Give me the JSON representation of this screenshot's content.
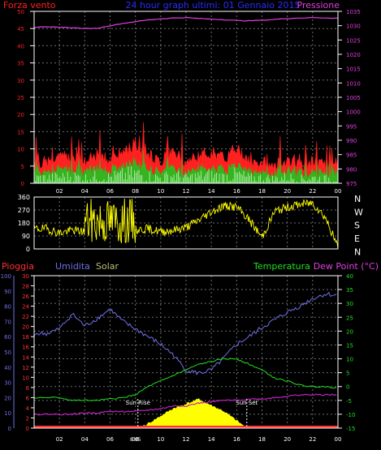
{
  "colors": {
    "background": "#000000",
    "frame": "#ffffff",
    "grid": "#6e6e6e",
    "wind": "#ff2020",
    "gust": "#1fc41f",
    "gust_light": "#d8ffd8",
    "pressure": "#e040e0",
    "direction": "#ffff00",
    "rain": "#ff3030",
    "humidity": "#6f6fe8",
    "solar": "#ffff00",
    "solar_text": "#bfbf7a",
    "temperature": "#20e020",
    "dewpoint": "#c020c0",
    "title": "#2a2aff",
    "sun_marker": "#ffffff"
  },
  "chart_data": [
    {
      "type": "line",
      "panel": "wind-pressure",
      "title": "24 hour graph ultimi: 01 Gennaio 2015",
      "left_label": "Forza vento",
      "right_label": "Pressione",
      "x_ticks": [
        "02",
        "04",
        "06",
        "08",
        "10",
        "12",
        "14",
        "16",
        "18",
        "20",
        "22",
        "00"
      ],
      "ylim_left": [
        0,
        50
      ],
      "y_ticks_left": [
        "0",
        "5",
        "10",
        "15",
        "20",
        "25",
        "30",
        "35",
        "40",
        "45",
        "50"
      ],
      "ylim_right": [
        975,
        1035
      ],
      "y_ticks_right": [
        "975",
        "980",
        "985",
        "990",
        "995",
        "1000",
        "1005",
        "1010",
        "1015",
        "1020",
        "1025",
        "1030",
        "1035"
      ],
      "series": [
        {
          "name": "Forza vento",
          "x": [
            1,
            2,
            3,
            4,
            5,
            6,
            7,
            8,
            9,
            10,
            11,
            12,
            13,
            14,
            15,
            16,
            17,
            18,
            19,
            20,
            21,
            22,
            23,
            24
          ],
          "values": [
            6,
            7,
            8,
            6,
            8,
            7,
            9,
            11,
            8,
            6,
            9,
            6,
            8,
            9,
            7,
            10,
            6,
            6,
            5,
            7,
            5,
            6,
            5,
            6
          ]
        },
        {
          "name": "Pressione",
          "x": [
            1,
            2,
            3,
            4,
            5,
            6,
            7,
            8,
            9,
            10,
            11,
            12,
            13,
            14,
            15,
            16,
            17,
            18,
            19,
            20,
            21,
            22,
            23,
            24
          ],
          "values": [
            1029.5,
            1029.5,
            1029.3,
            1029,
            1029.1,
            1030,
            1030.8,
            1031.4,
            1032,
            1032.4,
            1032.7,
            1032.8,
            1032.5,
            1032.3,
            1032.1,
            1031.8,
            1031.7,
            1031.9,
            1032.2,
            1032.5,
            1032.7,
            1032.8,
            1032.7,
            1032.6
          ]
        }
      ]
    },
    {
      "type": "line",
      "panel": "wind-direction",
      "x_ticks": [
        "02",
        "04",
        "06",
        "08",
        "10",
        "12",
        "14",
        "16",
        "18",
        "20",
        "22",
        "00"
      ],
      "ylim": [
        0,
        360
      ],
      "y_ticks_left": [
        "0",
        "90",
        "180",
        "270",
        "360"
      ],
      "y_ticks_right": [
        "N",
        "E",
        "S",
        "W",
        "N"
      ],
      "series": [
        {
          "x": [
            1,
            2,
            3,
            4,
            5,
            6,
            7,
            8,
            9,
            10,
            11,
            12,
            13,
            14,
            15,
            16,
            17,
            18,
            19,
            20,
            21,
            22,
            23,
            24
          ],
          "values": [
            140,
            110,
            130,
            120,
            260,
            180,
            160,
            130,
            140,
            120,
            130,
            150,
            200,
            260,
            300,
            290,
            200,
            80,
            260,
            290,
            310,
            320,
            220,
            10
          ]
        }
      ]
    },
    {
      "type": "line",
      "panel": "weather",
      "labels": {
        "rain": "Pioggia",
        "humidity": "Umidita",
        "solar": "Solar",
        "temperature": "Temperatura",
        "dewpoint": "Dew Point (°C)"
      },
      "x_ticks": [
        "02",
        "04",
        "06",
        "08",
        "10",
        "12",
        "14",
        "16",
        "18",
        "20",
        "22",
        "00"
      ],
      "y_ticks_humidity": [
        "0",
        "10",
        "20",
        "30",
        "40",
        "50",
        "60",
        "70",
        "80",
        "90",
        "100"
      ],
      "y_ticks_rain": [
        "0",
        "2",
        "4",
        "6",
        "8",
        "10",
        "12",
        "14",
        "16",
        "18",
        "20",
        "22",
        "24",
        "26",
        "28",
        "30"
      ],
      "ylim_temperature": [
        -15,
        40
      ],
      "y_ticks_temperature": [
        "-15",
        "-10",
        "-5",
        "0",
        "5",
        "10",
        "15",
        "20",
        "25",
        "30",
        "35",
        "40"
      ],
      "annotations": {
        "sunrise": "Sun Rise",
        "sunset": "Sun Set",
        "midday": "8:05"
      },
      "sunrise_x": 8.2,
      "sunset_x": 16.8,
      "series": [
        {
          "name": "Umidita",
          "x": [
            1,
            2,
            3,
            4,
            5,
            6,
            7,
            8,
            9,
            10,
            11,
            12,
            13,
            14,
            15,
            16,
            17,
            18,
            19,
            20,
            21,
            22,
            23,
            24
          ],
          "values": [
            62,
            65,
            75,
            67,
            72,
            78,
            70,
            65,
            60,
            55,
            48,
            38,
            36,
            38,
            46,
            55,
            60,
            66,
            71,
            76,
            80,
            85,
            88,
            87
          ]
        },
        {
          "name": "Temperatura",
          "x": [
            1,
            2,
            3,
            4,
            5,
            6,
            7,
            8,
            9,
            10,
            11,
            12,
            13,
            14,
            15,
            16,
            17,
            18,
            19,
            20,
            21,
            22,
            23,
            24
          ],
          "values": [
            -4,
            -4,
            -5,
            -5,
            -5,
            -4.5,
            -4,
            -3,
            0,
            2,
            4,
            6,
            8,
            9,
            10,
            10,
            8,
            6,
            3,
            2,
            0.5,
            0,
            0,
            -0.5
          ]
        },
        {
          "name": "Dew Point",
          "x": [
            1,
            2,
            3,
            4,
            5,
            6,
            7,
            8,
            9,
            10,
            11,
            12,
            13,
            14,
            15,
            16,
            17,
            18,
            19,
            20,
            21,
            22,
            23,
            24
          ],
          "values": [
            -10,
            -10,
            -10,
            -9.5,
            -9.5,
            -9,
            -9,
            -9,
            -8.5,
            -8,
            -7,
            -7,
            -6,
            -5.5,
            -5,
            -5,
            -4.5,
            -4.5,
            -4,
            -3.5,
            -3,
            -3,
            -3,
            -3
          ]
        },
        {
          "name": "Solar",
          "x": [
            8.2,
            9,
            10,
            11,
            12,
            13,
            14,
            15,
            16,
            16.8
          ],
          "values": [
            0,
            3,
            8,
            13,
            16,
            19,
            15,
            11,
            5,
            0
          ]
        },
        {
          "name": "Pioggia",
          "x": [
            0,
            24
          ],
          "values": [
            0,
            0
          ]
        }
      ]
    }
  ]
}
